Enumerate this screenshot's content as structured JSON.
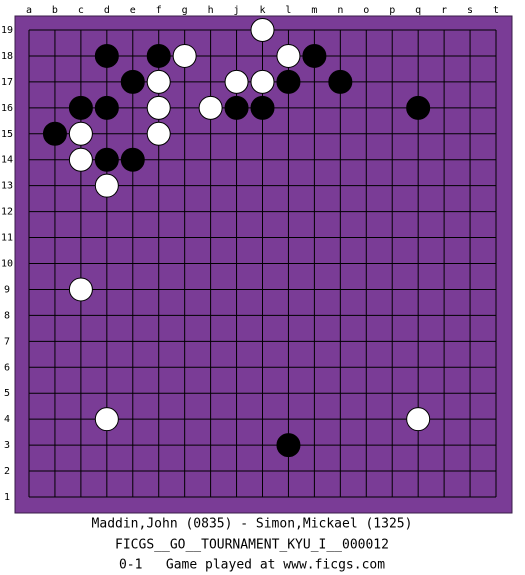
{
  "board": {
    "columns": [
      "a",
      "b",
      "c",
      "d",
      "e",
      "f",
      "g",
      "h",
      "j",
      "k",
      "l",
      "m",
      "n",
      "o",
      "p",
      "q",
      "r",
      "s",
      "t"
    ],
    "rows": [
      19,
      18,
      17,
      16,
      15,
      14,
      13,
      12,
      11,
      10,
      9,
      8,
      7,
      6,
      5,
      4,
      3,
      2,
      1
    ],
    "stones": [
      {
        "color": "white",
        "col": "k",
        "row": 19
      },
      {
        "color": "black",
        "col": "d",
        "row": 18
      },
      {
        "color": "black",
        "col": "f",
        "row": 18
      },
      {
        "color": "white",
        "col": "g",
        "row": 18
      },
      {
        "color": "white",
        "col": "l",
        "row": 18
      },
      {
        "color": "black",
        "col": "m",
        "row": 18
      },
      {
        "color": "black",
        "col": "e",
        "row": 17
      },
      {
        "color": "white",
        "col": "f",
        "row": 17
      },
      {
        "color": "white",
        "col": "j",
        "row": 17
      },
      {
        "color": "white",
        "col": "k",
        "row": 17
      },
      {
        "color": "black",
        "col": "l",
        "row": 17
      },
      {
        "color": "black",
        "col": "n",
        "row": 17
      },
      {
        "color": "black",
        "col": "c",
        "row": 16
      },
      {
        "color": "black",
        "col": "d",
        "row": 16
      },
      {
        "color": "white",
        "col": "f",
        "row": 16
      },
      {
        "color": "white",
        "col": "h",
        "row": 16
      },
      {
        "color": "black",
        "col": "j",
        "row": 16
      },
      {
        "color": "black",
        "col": "k",
        "row": 16
      },
      {
        "color": "black",
        "col": "q",
        "row": 16
      },
      {
        "color": "black",
        "col": "b",
        "row": 15
      },
      {
        "color": "white",
        "col": "c",
        "row": 15
      },
      {
        "color": "white",
        "col": "f",
        "row": 15
      },
      {
        "color": "white",
        "col": "c",
        "row": 14
      },
      {
        "color": "black",
        "col": "d",
        "row": 14
      },
      {
        "color": "black",
        "col": "e",
        "row": 14
      },
      {
        "color": "white",
        "col": "d",
        "row": 13
      },
      {
        "color": "white",
        "col": "c",
        "row": 9
      },
      {
        "color": "white",
        "col": "d",
        "row": 4
      },
      {
        "color": "white",
        "col": "q",
        "row": 4
      },
      {
        "color": "black",
        "col": "l",
        "row": 3
      }
    ]
  },
  "caption": {
    "players": "Maddin,John (0835) - Simon,Mickael (1325)",
    "event": "FICGS__GO__TOURNAMENT_KYU_I__000012",
    "result": "0-1   Game played at www.ficgs.com"
  }
}
